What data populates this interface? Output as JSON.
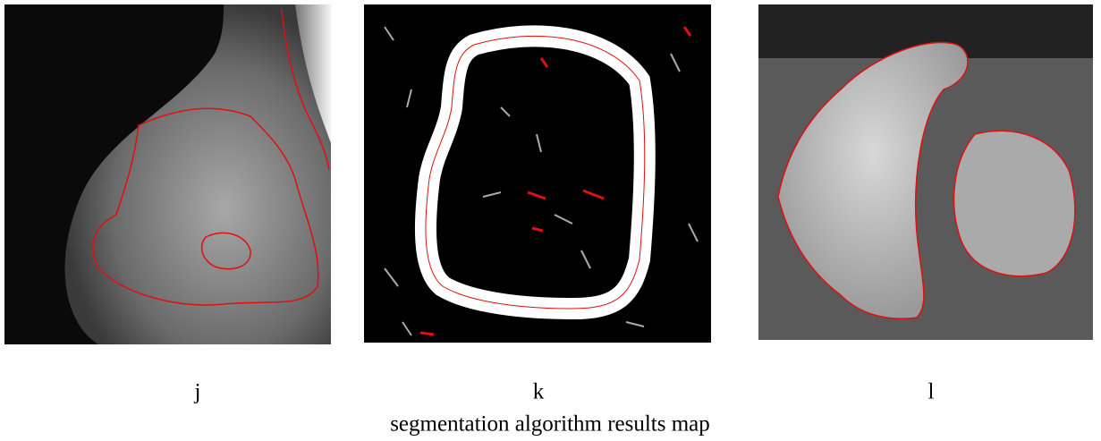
{
  "figure": {
    "panels": [
      {
        "label": "j"
      },
      {
        "label": "k"
      },
      {
        "label": "l"
      }
    ],
    "caption": "segmentation algorithm results map"
  }
}
